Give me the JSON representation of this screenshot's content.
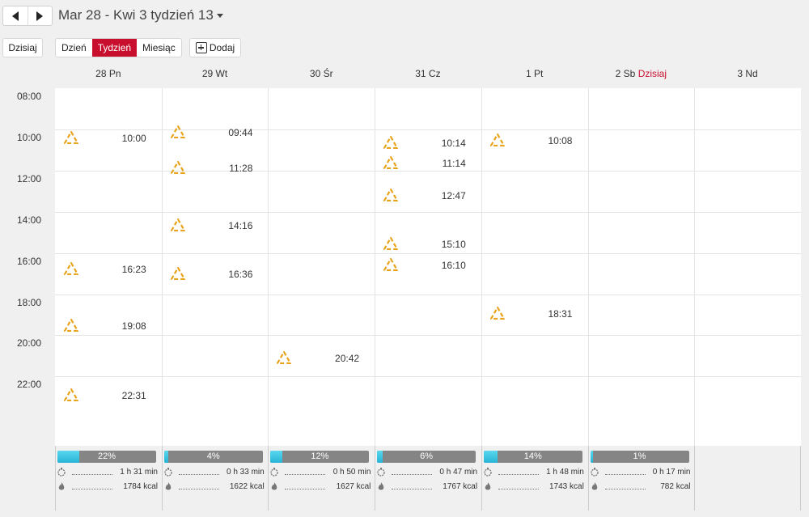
{
  "header": {
    "range_title": "Mar 28 - Kwi 3 tydzień 13",
    "prev_icon": "arrow-left-icon",
    "next_icon": "arrow-right-icon"
  },
  "toolbar": {
    "today_label": "Dzisiaj",
    "views": [
      {
        "label": "Dzień",
        "active": false
      },
      {
        "label": "Tydzień",
        "active": true
      },
      {
        "label": "Miesiąc",
        "active": false
      }
    ],
    "add_label": "Dodaj",
    "add_icon": "calendar-add-icon"
  },
  "days": [
    {
      "label": "28 Pn",
      "today": ""
    },
    {
      "label": "29 Wt",
      "today": ""
    },
    {
      "label": "30 Śr",
      "today": ""
    },
    {
      "label": "31 Cz",
      "today": ""
    },
    {
      "label": "1 Pt",
      "today": ""
    },
    {
      "label": "2 Sb",
      "today": "Dzisiaj"
    },
    {
      "label": "3 Nd",
      "today": ""
    }
  ],
  "time_labels": [
    "08:00",
    "10:00",
    "12:00",
    "14:00",
    "16:00",
    "18:00",
    "20:00",
    "22:00"
  ],
  "events": [
    {
      "day": 0,
      "time": "10:00"
    },
    {
      "day": 0,
      "time": "16:23"
    },
    {
      "day": 0,
      "time": "19:08"
    },
    {
      "day": 0,
      "time": "22:31"
    },
    {
      "day": 1,
      "time": "09:44"
    },
    {
      "day": 1,
      "time": "11:28"
    },
    {
      "day": 1,
      "time": "14:16"
    },
    {
      "day": 1,
      "time": "16:36"
    },
    {
      "day": 2,
      "time": "20:42"
    },
    {
      "day": 3,
      "time": "10:14"
    },
    {
      "day": 3,
      "time": "11:14"
    },
    {
      "day": 3,
      "time": "12:47"
    },
    {
      "day": 3,
      "time": "15:10"
    },
    {
      "day": 3,
      "time": "16:10"
    },
    {
      "day": 4,
      "time": "10:08"
    },
    {
      "day": 4,
      "time": "18:31"
    }
  ],
  "event_icon": "recycle-triangle-icon",
  "event_color": "#e8a31a",
  "accent_color": "#c8102e",
  "summaries": [
    {
      "percent": 22,
      "percent_label": "22%",
      "duration": "1 h 31 min",
      "kcal": "1784 kcal"
    },
    {
      "percent": 4,
      "percent_label": "4%",
      "duration": "0 h 33 min",
      "kcal": "1622 kcal"
    },
    {
      "percent": 12,
      "percent_label": "12%",
      "duration": "0 h 50 min",
      "kcal": "1627 kcal"
    },
    {
      "percent": 6,
      "percent_label": "6%",
      "duration": "0 h 47 min",
      "kcal": "1767 kcal"
    },
    {
      "percent": 14,
      "percent_label": "14%",
      "duration": "1 h 48 min",
      "kcal": "1743 kcal"
    },
    {
      "percent": 1,
      "percent_label": "1%",
      "duration": "0 h 17 min",
      "kcal": "782 kcal"
    }
  ],
  "summary_icons": {
    "duration": "stopwatch-icon",
    "kcal": "flame-icon"
  }
}
